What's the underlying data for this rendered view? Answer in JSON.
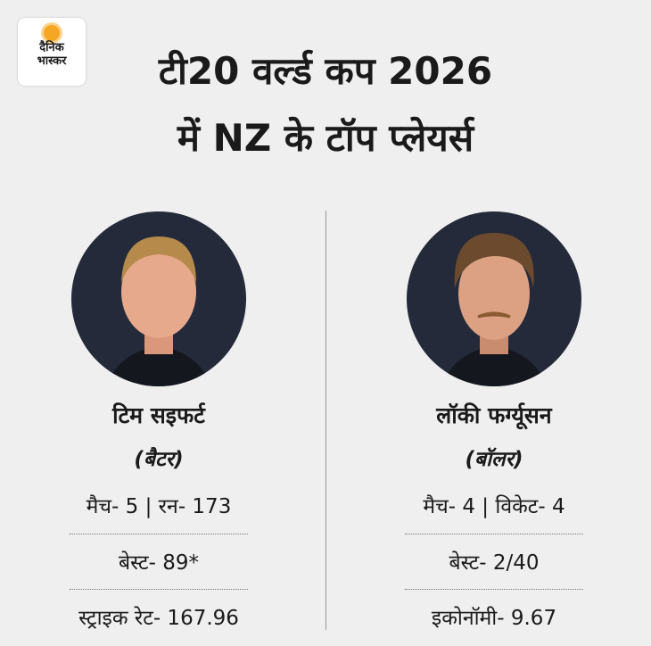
{
  "logo": {
    "line1": "दैनिक",
    "line2": "भास्कर"
  },
  "title": {
    "line1": "टी20 वर्ल्ड कप 2026",
    "line2": "में NZ के टॉप प्लेयर्स"
  },
  "players": [
    {
      "name": "टिम सइफर्ट",
      "role": "(बैटर)",
      "stats": [
        "मैच- 5 | रन- 173",
        "बेस्ट- 89*",
        "स्ट्राइक रेट- 167.96"
      ]
    },
    {
      "name": "लॉकी फर्ग्यूसन",
      "role": "(बॉलर)",
      "stats": [
        "मैच- 4 | विकेट- 4",
        "बेस्ट- 2/40",
        "इकोनॉमी- 9.67"
      ]
    }
  ]
}
